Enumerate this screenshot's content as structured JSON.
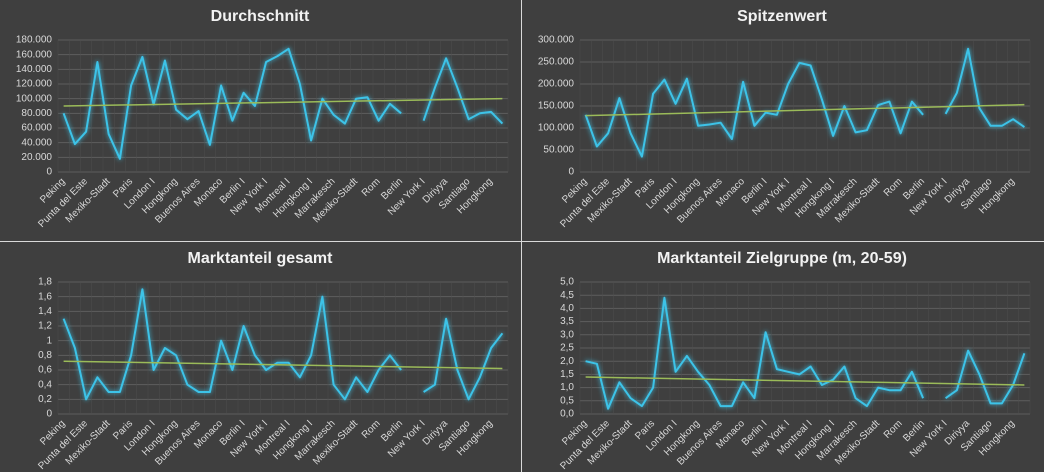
{
  "chart_data": [
    {
      "type": "line",
      "title": "Durchschnitt",
      "categories": [
        "Peking",
        null,
        "Punta del Este",
        null,
        "Mexiko-Stadt",
        null,
        "Paris",
        null,
        "London I",
        null,
        "Hongkong",
        null,
        "Buenos Aires",
        null,
        "Monaco",
        null,
        "Berlin I",
        null,
        "New York I",
        null,
        "Montreal I",
        null,
        "Hongkong I",
        null,
        "Marrakesch",
        null,
        "Mexiko-Stadt",
        null,
        "Rom",
        null,
        "Berlin",
        null,
        "New York I",
        null,
        "Diriyya",
        null,
        "Santiago",
        null,
        "Hongkong",
        null
      ],
      "values": [
        80000,
        38000,
        55000,
        150000,
        52000,
        18000,
        118000,
        157000,
        92000,
        152000,
        85000,
        72000,
        83000,
        37000,
        118000,
        70000,
        108000,
        90000,
        150000,
        158000,
        168000,
        120000,
        43000,
        100000,
        78000,
        66000,
        100000,
        102000,
        70000,
        93000,
        80000,
        null,
        70000,
        115000,
        155000,
        115000,
        72000,
        80000,
        82000,
        66000
      ],
      "color": "#3cc3e8",
      "trendline": {
        "color": "#9bbb59",
        "values": [
          90000,
          100000
        ]
      },
      "ylim": [
        0,
        180000
      ],
      "yticks": [
        0,
        {
          "value": 20000,
          "label": "20.000"
        },
        {
          "value": 40000,
          "label": "40.000"
        },
        {
          "value": 60000,
          "label": "60.000"
        },
        {
          "value": 80000,
          "label": "80.000"
        },
        {
          "value": 100000,
          "label": "100.000"
        },
        {
          "value": 120000,
          "label": "120.000"
        },
        {
          "value": 140000,
          "label": "140.000"
        },
        {
          "value": 160000,
          "label": "160.000"
        },
        {
          "value": 180000,
          "label": "180.000"
        }
      ],
      "grid": true
    },
    {
      "type": "line",
      "title": "Spitzenwert",
      "categories": [
        "Peking",
        null,
        "Punta del Este",
        null,
        "Mexiko-Stadt",
        null,
        "Paris",
        null,
        "London I",
        null,
        "Hongkong",
        null,
        "Buenos Aires",
        null,
        "Monaco",
        null,
        "Berlin I",
        null,
        "New York I",
        null,
        "Montreal I",
        null,
        "Hongkong I",
        null,
        "Marrakesch",
        null,
        "Mexiko-Stadt",
        null,
        "Rom",
        null,
        "Berlin",
        null,
        "New York I",
        null,
        "Diriyya",
        null,
        "Santiago",
        null,
        "Hongkong",
        null
      ],
      "values": [
        130000,
        58000,
        88000,
        168000,
        88000,
        35000,
        178000,
        210000,
        155000,
        212000,
        105000,
        108000,
        112000,
        75000,
        205000,
        105000,
        135000,
        130000,
        200000,
        248000,
        242000,
        165000,
        82000,
        150000,
        90000,
        95000,
        152000,
        160000,
        88000,
        160000,
        130000,
        null,
        132000,
        180000,
        280000,
        145000,
        105000,
        105000,
        120000,
        102000
      ],
      "color": "#3cc3e8",
      "trendline": {
        "color": "#9bbb59",
        "values": [
          128000,
          153000
        ]
      },
      "ylim": [
        0,
        300000
      ],
      "yticks": [
        0,
        {
          "value": 50000,
          "label": "50.000"
        },
        {
          "value": 100000,
          "label": "100.000"
        },
        {
          "value": 150000,
          "label": "150.000"
        },
        {
          "value": 200000,
          "label": "200.000"
        },
        {
          "value": 250000,
          "label": "250.000"
        },
        {
          "value": 300000,
          "label": "300.000"
        }
      ],
      "grid": true
    },
    {
      "type": "line",
      "title": "Marktanteil gesamt",
      "categories": [
        "Peking",
        null,
        "Punta del Este",
        null,
        "Mexiko-Stadt",
        null,
        "Paris",
        null,
        "London I",
        null,
        "Hongkong",
        null,
        "Buenos Aires",
        null,
        "Monaco",
        null,
        "Berlin I",
        null,
        "New York I",
        null,
        "Montreal I",
        null,
        "Hongkong I",
        null,
        "Marrakesch",
        null,
        "Mexiko-Stadt",
        null,
        "Rom",
        null,
        "Berlin",
        null,
        "New York I",
        null,
        "Diriyya",
        null,
        "Santiago",
        null,
        "Hongkong",
        null
      ],
      "values": [
        1.3,
        0.9,
        0.2,
        0.5,
        0.3,
        0.3,
        0.8,
        1.7,
        0.6,
        0.9,
        0.8,
        0.4,
        0.3,
        0.3,
        1.0,
        0.6,
        1.2,
        0.8,
        0.6,
        0.7,
        0.7,
        0.5,
        0.8,
        1.6,
        0.4,
        0.2,
        0.5,
        0.3,
        0.6,
        0.8,
        0.6,
        null,
        0.3,
        0.4,
        1.3,
        0.6,
        0.2,
        0.5,
        0.9,
        1.1
      ],
      "color": "#3cc3e8",
      "trendline": {
        "color": "#9bbb59",
        "values": [
          0.72,
          0.62
        ]
      },
      "ylim": [
        0,
        1.8
      ],
      "yticks": [
        0,
        {
          "value": 0.2,
          "label": "0,2"
        },
        {
          "value": 0.4,
          "label": "0,4"
        },
        {
          "value": 0.6,
          "label": "0,6"
        },
        {
          "value": 0.8,
          "label": "0,8"
        },
        1,
        {
          "value": 1.2,
          "label": "1,2"
        },
        {
          "value": 1.4,
          "label": "1,4"
        },
        {
          "value": 1.6,
          "label": "1,6"
        },
        {
          "value": 1.8,
          "label": "1,8"
        }
      ],
      "grid": true
    },
    {
      "type": "line",
      "title": "Marktanteil Zielgruppe (m, 20-59)",
      "categories": [
        "Peking",
        null,
        "Punta del Este",
        null,
        "Mexiko-Stadt",
        null,
        "Paris",
        null,
        "London I",
        null,
        "Hongkong",
        null,
        "Buenos Aires",
        null,
        "Monaco",
        null,
        "Berlin I",
        null,
        "New York I",
        null,
        "Montreal I",
        null,
        "Hongkong I",
        null,
        "Marrakesch",
        null,
        "Mexiko-Stadt",
        null,
        "Rom",
        null,
        "Berlin",
        null,
        "New York I",
        null,
        "Diriyya",
        null,
        "Santiago",
        null,
        "Hongkong",
        null
      ],
      "values": [
        2.0,
        1.9,
        0.2,
        1.2,
        0.6,
        0.3,
        1.0,
        4.4,
        1.6,
        2.2,
        1.6,
        1.1,
        0.3,
        0.3,
        1.2,
        0.6,
        3.1,
        1.7,
        1.6,
        1.5,
        1.8,
        1.1,
        1.3,
        1.8,
        0.6,
        0.3,
        1.0,
        0.9,
        0.9,
        1.6,
        0.6,
        null,
        0.6,
        0.9,
        2.4,
        1.5,
        0.4,
        0.4,
        1.1,
        2.3
      ],
      "color": "#3cc3e8",
      "trendline": {
        "color": "#9bbb59",
        "values": [
          1.4,
          1.1
        ]
      },
      "ylim": [
        0,
        5
      ],
      "yticks": [
        {
          "value": 0,
          "label": "0,0"
        },
        {
          "value": 0.5,
          "label": "0,5"
        },
        {
          "value": 1,
          "label": "1,0"
        },
        {
          "value": 1.5,
          "label": "1,5"
        },
        {
          "value": 2,
          "label": "2,0"
        },
        {
          "value": 2.5,
          "label": "2,5"
        },
        {
          "value": 3,
          "label": "3,0"
        },
        {
          "value": 3.5,
          "label": "3,5"
        },
        {
          "value": 4,
          "label": "4,0"
        },
        {
          "value": 4.5,
          "label": "4,5"
        },
        {
          "value": 5,
          "label": "5,0"
        }
      ],
      "grid": true
    }
  ]
}
